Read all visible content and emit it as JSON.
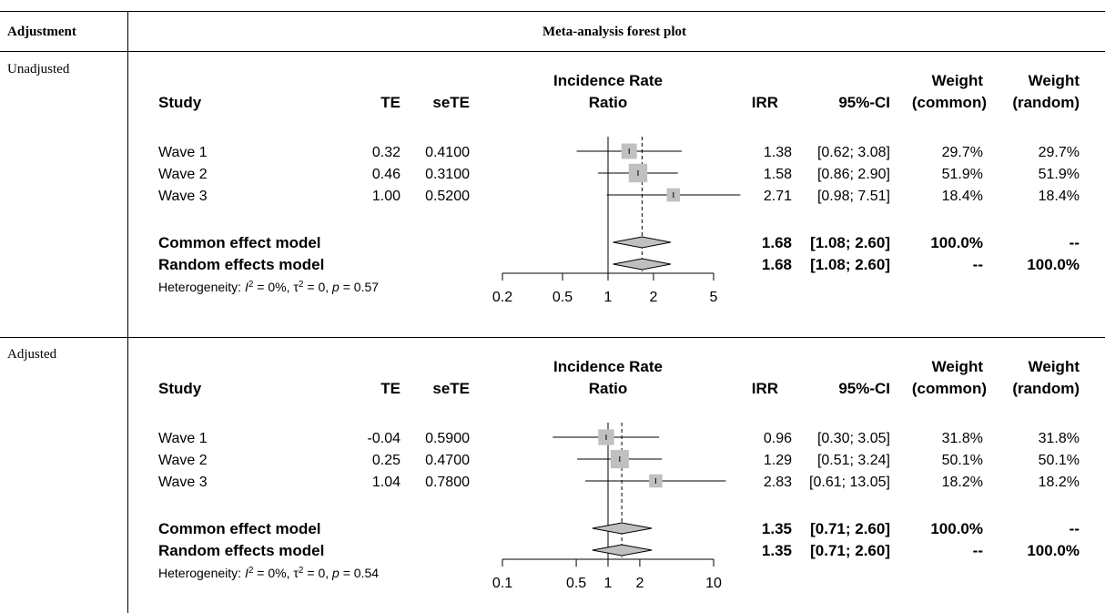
{
  "table": {
    "col_adjustment_header": "Adjustment",
    "col_plot_header": "Meta-analysis forest plot",
    "rows": [
      {
        "label": "Unadjusted"
      },
      {
        "label": "Adjusted"
      }
    ]
  },
  "columns": {
    "study": "Study",
    "te": "TE",
    "sete": "seTE",
    "plot_title_line1": "Incidence Rate",
    "plot_title_line2": "Ratio",
    "irr": "IRR",
    "ci": "95%-CI",
    "weight_line1": "Weight",
    "weight_common": "(common)",
    "weight_random": "(random)"
  },
  "colors": {
    "box": "#c0c0c0",
    "diamond": "#c0c0c0",
    "line": "#000000"
  },
  "chart_data": [
    {
      "type": "forest",
      "panel": "Unadjusted",
      "x_scale": "log",
      "xlim": [
        0.2,
        5
      ],
      "ticks": [
        0.2,
        0.5,
        1,
        2,
        5
      ],
      "tick_labels": [
        "0.2",
        "0.5",
        "1",
        "2",
        "5"
      ],
      "null_line": 1,
      "studies": [
        {
          "name": "Wave 1",
          "te": "0.32",
          "sete": "0.4100",
          "irr": 1.38,
          "ci_low": 0.62,
          "ci_high": 3.08,
          "irr_text": "1.38",
          "ci_text": "[0.62; 3.08]",
          "weight_common": "29.7%",
          "weight_random": "29.7%",
          "w": 29.7
        },
        {
          "name": "Wave 2",
          "te": "0.46",
          "sete": "0.3100",
          "irr": 1.58,
          "ci_low": 0.86,
          "ci_high": 2.9,
          "irr_text": "1.58",
          "ci_text": "[0.86; 2.90]",
          "weight_common": "51.9%",
          "weight_random": "51.9%",
          "w": 51.9
        },
        {
          "name": "Wave 3",
          "te": "1.00",
          "sete": "0.5200",
          "irr": 2.71,
          "ci_low": 0.98,
          "ci_high": 7.51,
          "irr_text": "2.71",
          "ci_text": "[0.98; 7.51]",
          "weight_common": "18.4%",
          "weight_random": "18.4%",
          "w": 18.4
        }
      ],
      "models": [
        {
          "name": "Common effect model",
          "irr": 1.68,
          "ci_low": 1.08,
          "ci_high": 2.6,
          "irr_text": "1.68",
          "ci_text": "[1.08; 2.60]",
          "weight_common": "100.0%",
          "weight_random": "--"
        },
        {
          "name": "Random effects model",
          "irr": 1.68,
          "ci_low": 1.08,
          "ci_high": 2.6,
          "irr_text": "1.68",
          "ci_text": "[1.08; 2.60]",
          "weight_common": "--",
          "weight_random": "100.0%"
        }
      ],
      "heterogeneity": {
        "i2": "0%",
        "tau2": "0",
        "p": "0.57"
      }
    },
    {
      "type": "forest",
      "panel": "Adjusted",
      "x_scale": "log",
      "xlim": [
        0.1,
        10
      ],
      "ticks": [
        0.1,
        0.5,
        1,
        2,
        10
      ],
      "tick_labels": [
        "0.1",
        "0.5",
        "1",
        "2",
        "10"
      ],
      "null_line": 1,
      "studies": [
        {
          "name": "Wave 1",
          "te": "-0.04",
          "sete": "0.5900",
          "irr": 0.96,
          "ci_low": 0.3,
          "ci_high": 3.05,
          "irr_text": "0.96",
          "ci_text": "[0.30; 3.05]",
          "weight_common": "31.8%",
          "weight_random": "31.8%",
          "w": 31.8
        },
        {
          "name": "Wave 2",
          "te": "0.25",
          "sete": "0.4700",
          "irr": 1.29,
          "ci_low": 0.51,
          "ci_high": 3.24,
          "irr_text": "1.29",
          "ci_text": "[0.51; 3.24]",
          "weight_common": "50.1%",
          "weight_random": "50.1%",
          "w": 50.1
        },
        {
          "name": "Wave 3",
          "te": "1.04",
          "sete": "0.7800",
          "irr": 2.83,
          "ci_low": 0.61,
          "ci_high": 13.05,
          "irr_text": "2.83",
          "ci_text": "[0.61; 13.05]",
          "weight_common": "18.2%",
          "weight_random": "18.2%",
          "w": 18.2
        }
      ],
      "models": [
        {
          "name": "Common effect model",
          "irr": 1.35,
          "ci_low": 0.71,
          "ci_high": 2.6,
          "irr_text": "1.35",
          "ci_text": "[0.71; 2.60]",
          "weight_common": "100.0%",
          "weight_random": "--"
        },
        {
          "name": "Random effects model",
          "irr": 1.35,
          "ci_low": 0.71,
          "ci_high": 2.6,
          "irr_text": "1.35",
          "ci_text": "[0.71; 2.60]",
          "weight_common": "--",
          "weight_random": "100.0%"
        }
      ],
      "heterogeneity": {
        "i2": "0%",
        "tau2": "0",
        "p": "0.54"
      }
    }
  ]
}
